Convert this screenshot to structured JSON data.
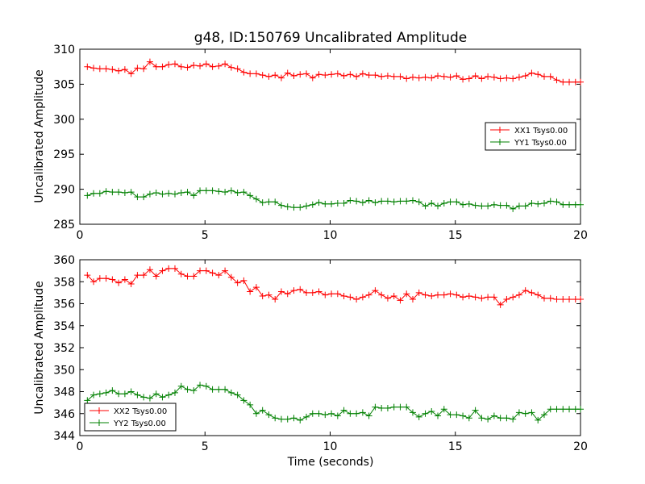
{
  "chart_data": [
    {
      "type": "line",
      "title": "g48, ID:150769 Uncalibrated Amplitude",
      "xlabel": "",
      "ylabel": "Uncalibrated Amplitude",
      "xlim": [
        0,
        20
      ],
      "ylim": [
        285,
        310
      ],
      "xticks": [
        0,
        5,
        10,
        15,
        20
      ],
      "yticks": [
        285,
        290,
        295,
        300,
        305,
        310
      ],
      "legend_position": "center-right",
      "series": [
        {
          "name": "XX1 Tsys0.00",
          "color": "#ff0000",
          "x": [
            0.3,
            0.55,
            0.8,
            1.05,
            1.3,
            1.55,
            1.8,
            2.05,
            2.3,
            2.55,
            2.8,
            3.05,
            3.3,
            3.55,
            3.8,
            4.05,
            4.3,
            4.55,
            4.8,
            5.05,
            5.3,
            5.55,
            5.8,
            6.05,
            6.3,
            6.55,
            6.8,
            7.05,
            7.3,
            7.55,
            7.8,
            8.05,
            8.3,
            8.55,
            8.8,
            9.05,
            9.3,
            9.55,
            9.8,
            10.05,
            10.3,
            10.55,
            10.8,
            11.05,
            11.3,
            11.55,
            11.8,
            12.05,
            12.3,
            12.55,
            12.8,
            13.05,
            13.3,
            13.55,
            13.8,
            14.05,
            14.3,
            14.55,
            14.8,
            15.05,
            15.3,
            15.55,
            15.8,
            16.05,
            16.3,
            16.55,
            16.8,
            17.05,
            17.3,
            17.55,
            17.8,
            18.05,
            18.3,
            18.55,
            18.8,
            19.05,
            19.3,
            19.55,
            19.8,
            20.0
          ],
          "values": [
            307.5,
            307.3,
            307.2,
            307.2,
            307.1,
            306.9,
            307.1,
            306.5,
            307.3,
            307.2,
            308.2,
            307.5,
            307.5,
            307.8,
            307.9,
            307.5,
            307.4,
            307.7,
            307.6,
            307.9,
            307.5,
            307.6,
            307.9,
            307.4,
            307.2,
            306.7,
            306.5,
            306.5,
            306.3,
            306.1,
            306.3,
            305.9,
            306.6,
            306.2,
            306.4,
            306.5,
            305.9,
            306.4,
            306.3,
            306.4,
            306.5,
            306.2,
            306.4,
            306.1,
            306.5,
            306.3,
            306.3,
            306.1,
            306.2,
            306.1,
            306.1,
            305.8,
            306.0,
            305.9,
            306.0,
            305.9,
            306.2,
            306.1,
            306.0,
            306.2,
            305.7,
            305.8,
            306.2,
            305.8,
            306.1,
            306.0,
            305.8,
            305.9,
            305.8,
            306.0,
            306.2,
            306.6,
            306.4,
            306.1,
            306.1,
            305.6,
            305.3,
            305.3,
            305.3,
            305.3
          ]
        },
        {
          "name": "YY1 Tsys0.00",
          "color": "#008000",
          "x": [
            0.3,
            0.55,
            0.8,
            1.05,
            1.3,
            1.55,
            1.8,
            2.05,
            2.3,
            2.55,
            2.8,
            3.05,
            3.3,
            3.55,
            3.8,
            4.05,
            4.3,
            4.55,
            4.8,
            5.05,
            5.3,
            5.55,
            5.8,
            6.05,
            6.3,
            6.55,
            6.8,
            7.05,
            7.3,
            7.55,
            7.8,
            8.05,
            8.3,
            8.55,
            8.8,
            9.05,
            9.3,
            9.55,
            9.8,
            10.05,
            10.3,
            10.55,
            10.8,
            11.05,
            11.3,
            11.55,
            11.8,
            12.05,
            12.3,
            12.55,
            12.8,
            13.05,
            13.3,
            13.55,
            13.8,
            14.05,
            14.3,
            14.55,
            14.8,
            15.05,
            15.3,
            15.55,
            15.8,
            16.05,
            16.3,
            16.55,
            16.8,
            17.05,
            17.3,
            17.55,
            17.8,
            18.05,
            18.3,
            18.55,
            18.8,
            19.05,
            19.3,
            19.55,
            19.8,
            20.0
          ],
          "values": [
            289.1,
            289.4,
            289.4,
            289.7,
            289.6,
            289.6,
            289.5,
            289.6,
            288.9,
            288.9,
            289.3,
            289.5,
            289.3,
            289.4,
            289.3,
            289.5,
            289.6,
            289.1,
            289.8,
            289.8,
            289.8,
            289.7,
            289.6,
            289.8,
            289.5,
            289.6,
            289.1,
            288.6,
            288.1,
            288.2,
            288.2,
            287.7,
            287.5,
            287.4,
            287.4,
            287.6,
            287.8,
            288.1,
            287.9,
            287.9,
            288.0,
            288.0,
            288.4,
            288.3,
            288.1,
            288.4,
            288.1,
            288.3,
            288.3,
            288.2,
            288.3,
            288.3,
            288.4,
            288.2,
            287.6,
            288.0,
            287.6,
            288.0,
            288.2,
            288.2,
            287.8,
            287.9,
            287.7,
            287.6,
            287.6,
            287.8,
            287.7,
            287.7,
            287.2,
            287.6,
            287.6,
            288.0,
            287.9,
            288.0,
            288.3,
            288.2,
            287.8,
            287.8,
            287.8,
            287.8
          ]
        }
      ]
    },
    {
      "type": "line",
      "title": "",
      "xlabel": "Time (seconds)",
      "ylabel": "Uncalibrated Amplitude",
      "xlim": [
        0,
        20
      ],
      "ylim": [
        344,
        360
      ],
      "xticks": [
        0,
        5,
        10,
        15,
        20
      ],
      "yticks": [
        344,
        346,
        348,
        350,
        352,
        354,
        356,
        358,
        360
      ],
      "legend_position": "lower-left",
      "series": [
        {
          "name": "XX2 Tsys0.00",
          "color": "#ff0000",
          "x": [
            0.3,
            0.55,
            0.8,
            1.05,
            1.3,
            1.55,
            1.8,
            2.05,
            2.3,
            2.55,
            2.8,
            3.05,
            3.3,
            3.55,
            3.8,
            4.05,
            4.3,
            4.55,
            4.8,
            5.05,
            5.3,
            5.55,
            5.8,
            6.05,
            6.3,
            6.55,
            6.8,
            7.05,
            7.3,
            7.55,
            7.8,
            8.05,
            8.3,
            8.55,
            8.8,
            9.05,
            9.3,
            9.55,
            9.8,
            10.05,
            10.3,
            10.55,
            10.8,
            11.05,
            11.3,
            11.55,
            11.8,
            12.05,
            12.3,
            12.55,
            12.8,
            13.05,
            13.3,
            13.55,
            13.8,
            14.05,
            14.3,
            14.55,
            14.8,
            15.05,
            15.3,
            15.55,
            15.8,
            16.05,
            16.3,
            16.55,
            16.8,
            17.05,
            17.3,
            17.55,
            17.8,
            18.05,
            18.3,
            18.55,
            18.8,
            19.05,
            19.3,
            19.55,
            19.8,
            20.0
          ],
          "values": [
            358.6,
            358.0,
            358.3,
            358.3,
            358.2,
            357.9,
            358.2,
            357.8,
            358.6,
            358.6,
            359.1,
            358.5,
            359.0,
            359.2,
            359.2,
            358.7,
            358.5,
            358.5,
            359.0,
            359.0,
            358.8,
            358.6,
            359.0,
            358.4,
            357.9,
            358.1,
            357.1,
            357.5,
            356.7,
            356.8,
            356.4,
            357.1,
            356.9,
            357.2,
            357.3,
            357.0,
            357.0,
            357.1,
            356.8,
            356.9,
            356.9,
            356.7,
            356.6,
            356.4,
            356.6,
            356.8,
            357.2,
            356.8,
            356.5,
            356.7,
            356.3,
            356.9,
            356.4,
            357.0,
            356.8,
            356.7,
            356.8,
            356.8,
            356.9,
            356.8,
            356.6,
            356.7,
            356.6,
            356.5,
            356.6,
            356.6,
            355.9,
            356.4,
            356.6,
            356.8,
            357.2,
            357.0,
            356.8,
            356.5,
            356.5,
            356.4,
            356.4,
            356.4,
            356.4,
            356.4
          ]
        },
        {
          "name": "YY2 Tsys0.00",
          "color": "#008000",
          "x": [
            0.3,
            0.55,
            0.8,
            1.05,
            1.3,
            1.55,
            1.8,
            2.05,
            2.3,
            2.55,
            2.8,
            3.05,
            3.3,
            3.55,
            3.8,
            4.05,
            4.3,
            4.55,
            4.8,
            5.05,
            5.3,
            5.55,
            5.8,
            6.05,
            6.3,
            6.55,
            6.8,
            7.05,
            7.3,
            7.55,
            7.8,
            8.05,
            8.3,
            8.55,
            8.8,
            9.05,
            9.3,
            9.55,
            9.8,
            10.05,
            10.3,
            10.55,
            10.8,
            11.05,
            11.3,
            11.55,
            11.8,
            12.05,
            12.3,
            12.55,
            12.8,
            13.05,
            13.3,
            13.55,
            13.8,
            14.05,
            14.3,
            14.55,
            14.8,
            15.05,
            15.3,
            15.55,
            15.8,
            16.05,
            16.3,
            16.55,
            16.8,
            17.05,
            17.3,
            17.55,
            17.8,
            18.05,
            18.3,
            18.55,
            18.8,
            19.05,
            19.3,
            19.55,
            19.8,
            20.0
          ],
          "values": [
            347.2,
            347.7,
            347.8,
            347.9,
            348.1,
            347.8,
            347.8,
            348.0,
            347.7,
            347.5,
            347.4,
            347.8,
            347.5,
            347.7,
            347.9,
            348.5,
            348.2,
            348.1,
            348.6,
            348.5,
            348.2,
            348.2,
            348.2,
            347.9,
            347.7,
            347.2,
            346.8,
            346.0,
            346.3,
            345.9,
            345.6,
            345.5,
            345.5,
            345.6,
            345.4,
            345.7,
            346.0,
            346.0,
            345.9,
            346.0,
            345.8,
            346.3,
            346.0,
            346.0,
            346.1,
            345.8,
            346.6,
            346.5,
            346.5,
            346.6,
            346.6,
            346.6,
            346.1,
            345.7,
            346.0,
            346.2,
            345.8,
            346.4,
            345.9,
            345.9,
            345.8,
            345.6,
            346.3,
            345.6,
            345.5,
            345.8,
            345.6,
            345.6,
            345.5,
            346.1,
            346.0,
            346.1,
            345.4,
            345.9,
            346.4,
            346.4,
            346.4,
            346.4,
            346.4,
            346.4
          ]
        }
      ]
    }
  ]
}
